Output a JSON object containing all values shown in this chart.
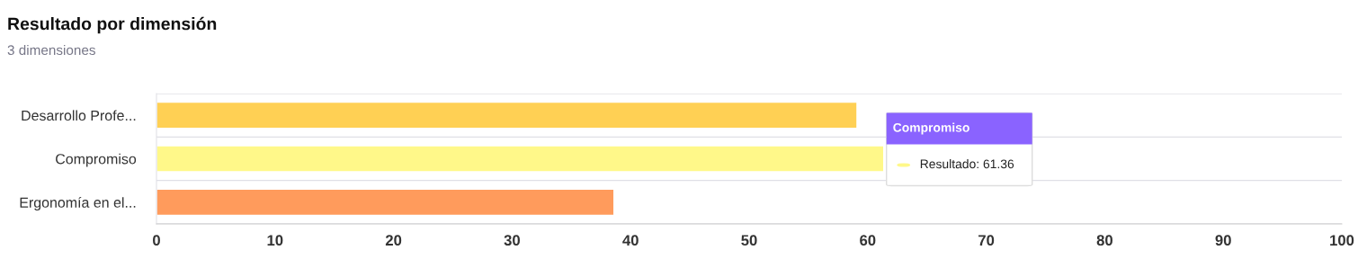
{
  "chart_data": {
    "type": "bar",
    "orientation": "horizontal",
    "title": "Resultado por dimensión",
    "subtitle": "3 dimensiones",
    "categories": [
      "Desarrollo Profe...",
      "Compromiso",
      "Ergonomía en el..."
    ],
    "values": [
      59.1,
      61.36,
      38.6
    ],
    "colors": [
      "#ffd054",
      "#fff889",
      "#ff9b5c"
    ],
    "xlim": [
      0,
      100
    ],
    "xticks": [
      0,
      10,
      20,
      30,
      40,
      50,
      60,
      70,
      80,
      90,
      100
    ],
    "grid": "y",
    "legend": false,
    "annotations": [
      "Compromiso",
      {
        "text": "Resultado: 61.36",
        "x": 61.36,
        "y": "Compromiso"
      }
    ]
  }
}
